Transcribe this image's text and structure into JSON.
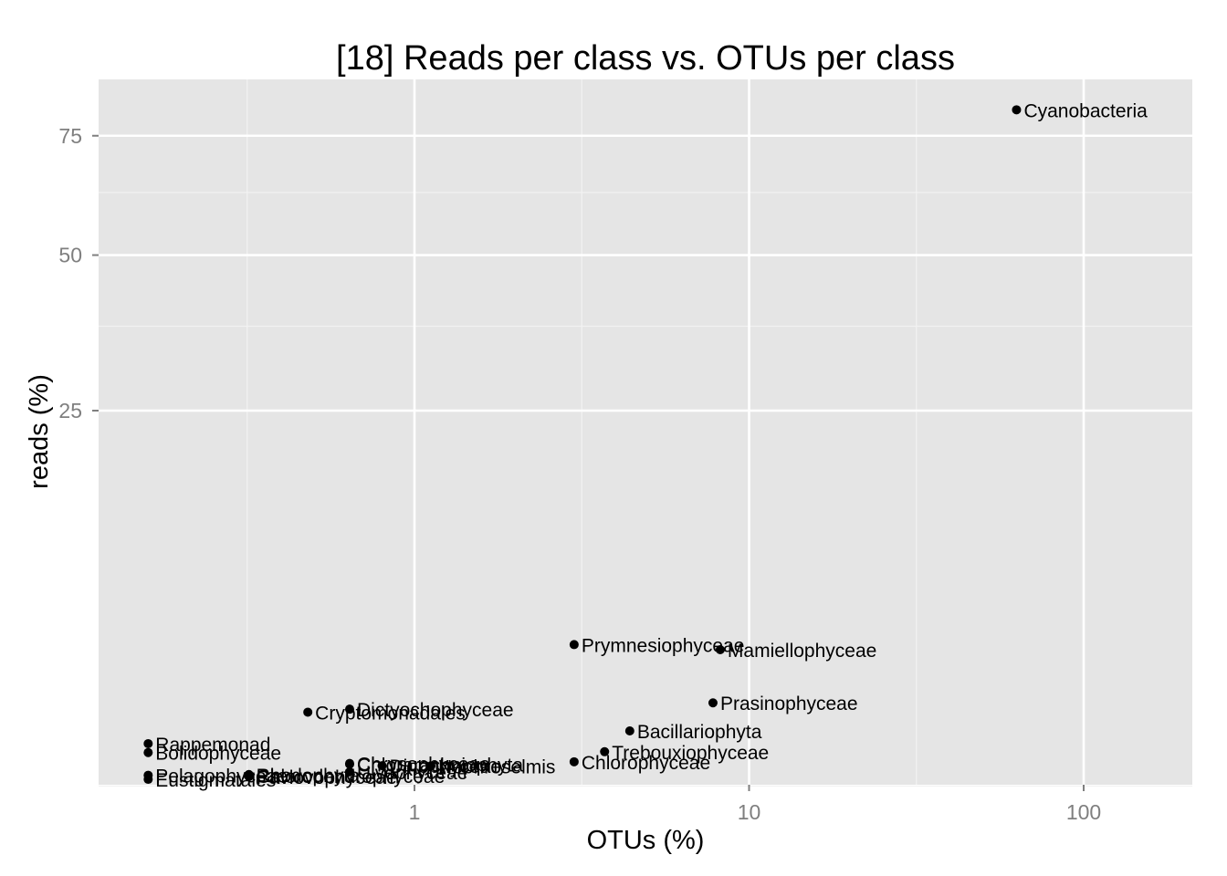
{
  "chart_data": {
    "type": "scatter",
    "title": "[18] Reads per class vs. OTUs per class",
    "xlabel": "OTUs (%)",
    "ylabel": "reads (%)",
    "x_scale": "log10",
    "x_ticks": [
      {
        "value": 1,
        "label": "1"
      },
      {
        "value": 10,
        "label": "10"
      },
      {
        "value": 100,
        "label": "100"
      }
    ],
    "y_ticks": [
      {
        "value": 25,
        "label": "25"
      },
      {
        "value": 50,
        "label": "50"
      },
      {
        "value": 75,
        "label": "75"
      }
    ],
    "grid": true,
    "points": [
      {
        "label": "Cyanobacteria",
        "x": 63,
        "y": 81.1
      },
      {
        "label": "Prymnesiophyceae",
        "x": 3.0,
        "y": 3.55
      },
      {
        "label": "Mamiellophyceae",
        "x": 8.2,
        "y": 3.3
      },
      {
        "label": "Prasinophyceae",
        "x": 7.8,
        "y": 1.23
      },
      {
        "label": "Dictyochophyceae",
        "x": 0.64,
        "y": 1.05
      },
      {
        "label": "Cryptomonadales",
        "x": 0.48,
        "y": 0.97
      },
      {
        "label": "Bacillariophyta",
        "x": 4.4,
        "y": 0.54
      },
      {
        "label": "Rappemonad",
        "x": 0.16,
        "y": 0.32
      },
      {
        "label": "Bolidophyceae",
        "x": 0.16,
        "y": 0.2
      },
      {
        "label": "Trebouxiophyceae",
        "x": 3.7,
        "y": 0.21
      },
      {
        "label": "Chlorophyceae",
        "x": 3.0,
        "y": 0.105
      },
      {
        "label": "Chrysophyceae",
        "x": 0.64,
        "y": 0.091
      },
      {
        "label": "Chlorarachniophyta",
        "x": 0.64,
        "y": 0.085
      },
      {
        "label": "Dinophyceae",
        "x": 0.8,
        "y": 0.074
      },
      {
        "label": "Nephroselmis",
        "x": 1.12,
        "y": 0.073
      },
      {
        "label": "Ulvophyceae",
        "x": 0.64,
        "y": 0.036
      },
      {
        "label": "Rhodophyta",
        "x": 0.32,
        "y": 0.024
      },
      {
        "label": "Pelagophyceae",
        "x": 0.16,
        "y": 0.021
      },
      {
        "label": "Chlorodendrophyceae",
        "x": 0.32,
        "y": 0.019
      },
      {
        "label": "Pavlovophyceae",
        "x": 0.32,
        "y": 0.016
      },
      {
        "label": "Eustigmatales",
        "x": 0.16,
        "y": 0.0082
      }
    ]
  }
}
